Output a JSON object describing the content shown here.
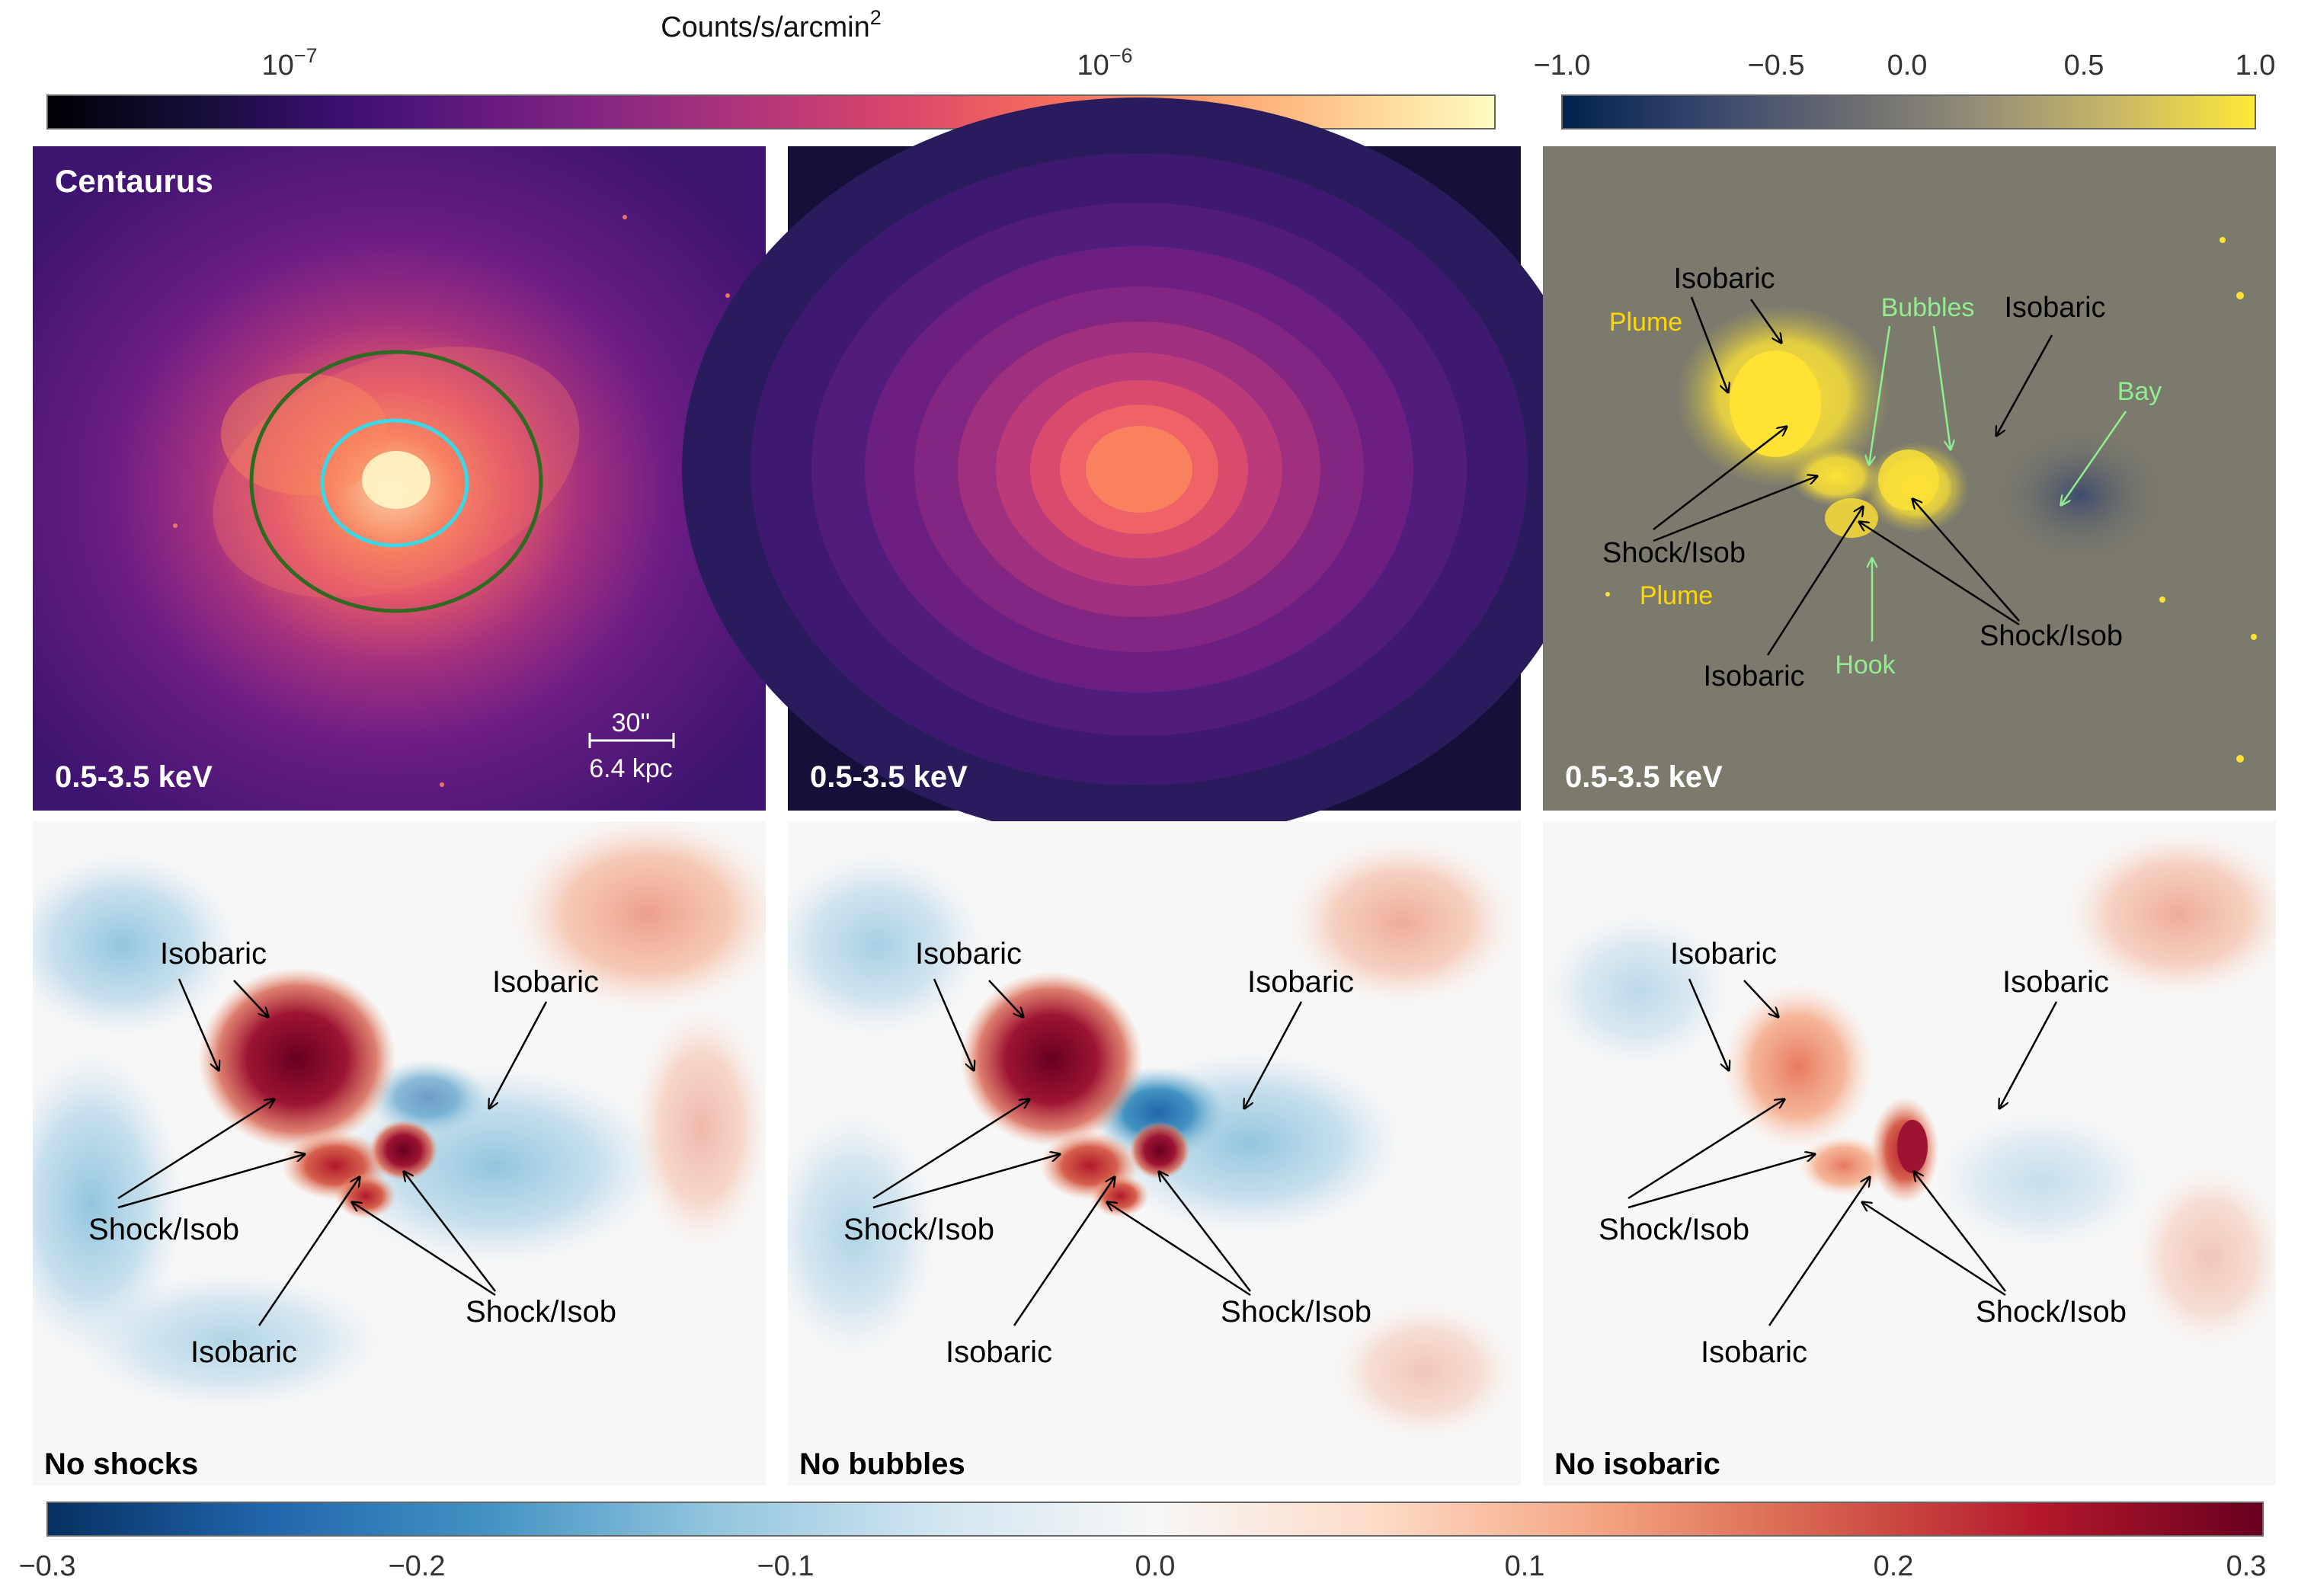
{
  "colors": {
    "magma": [
      "#000004",
      "#140e36",
      "#3b0f70",
      "#641a80",
      "#8c2981",
      "#b73779",
      "#de4968",
      "#f7705c",
      "#fe9f6d",
      "#fecf92",
      "#fcfdbf"
    ],
    "cividis": [
      "#00224e",
      "#35456c",
      "#666970",
      "#948e77",
      "#c8b866",
      "#fee838"
    ],
    "rdbu": [
      "#053061",
      "#2166ac",
      "#4393c3",
      "#92c5de",
      "#d1e5f0",
      "#f7f7f7",
      "#fddbc7",
      "#f4a582",
      "#d6604d",
      "#b2182b",
      "#67001f"
    ],
    "annotation_yellow": "#ffd700",
    "annotation_green": "#90ee90"
  },
  "top_left_colorbar": {
    "title": "Counts/s/arcmin",
    "title_sup": "2",
    "ticks": [
      {
        "base": "10",
        "exp": "−7"
      },
      {
        "base": "10",
        "exp": "−6"
      }
    ]
  },
  "top_right_colorbar": {
    "ticks": [
      "−1.0",
      "−0.5",
      "0.0",
      "0.5",
      "1.0"
    ]
  },
  "bottom_colorbar": {
    "ticks": [
      "−0.3",
      "−0.2",
      "−0.1",
      "0.0",
      "0.1",
      "0.2",
      "0.3"
    ]
  },
  "panels": {
    "p1": {
      "name": "Centaurus",
      "band": "0.5-3.5 keV",
      "scale_arcsec": "30''",
      "scale_kpc": "6.4 kpc"
    },
    "p2": {
      "band": "0.5-3.5 keV"
    },
    "p3": {
      "band": "0.5-3.5 keV",
      "labels": {
        "isobaric_a": "Isobaric",
        "isobaric_b": "Isobaric",
        "isobaric_c": "Isobaric",
        "plume_a": "Plume",
        "plume_b": "Plume",
        "bubbles": "Bubbles",
        "bay": "Bay",
        "hook": "Hook",
        "shock_a": "Shock/Isob",
        "shock_b": "Shock/Isob"
      }
    },
    "p4": {
      "caption": "No shocks"
    },
    "p5": {
      "caption": "No bubbles"
    },
    "p6": {
      "caption": "No isobaric"
    },
    "bottom_labels": {
      "isobaric_ul": "Isobaric",
      "isobaric_ur": "Isobaric",
      "isobaric_bottom": "Isobaric",
      "shock_left": "Shock/Isob",
      "shock_right": "Shock/Isob"
    }
  }
}
